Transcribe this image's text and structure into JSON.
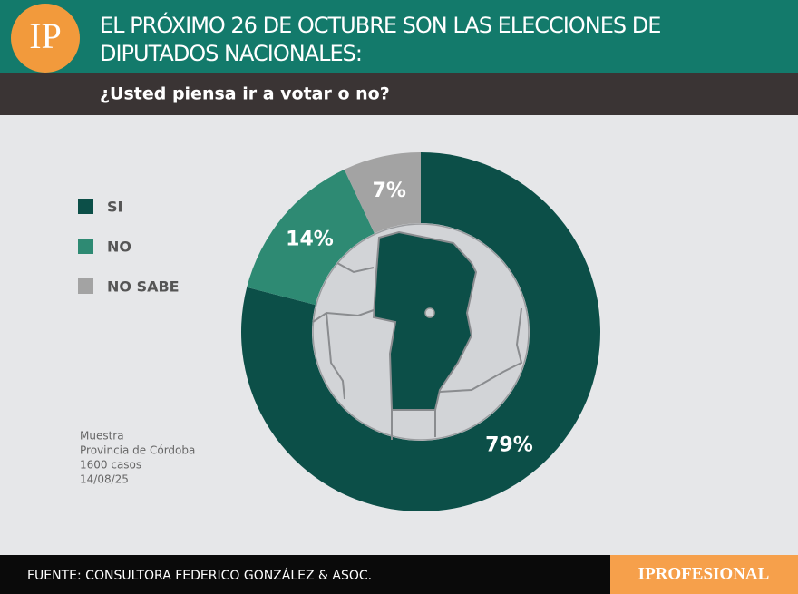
{
  "chart_data": {
    "type": "donut",
    "logo": "IP",
    "title_lines": [
      "EL PRÓXIMO 26 DE OCTUBRE SON LAS ELECCIONES DE",
      "DIPUTADOS NACIONALES:"
    ],
    "subtitle": "¿Usted piensa ir a votar o no?",
    "categories": [
      "SI",
      "NO",
      "NO SABE"
    ],
    "values": [
      79,
      14,
      7
    ],
    "value_labels": [
      "79%",
      "14%",
      "7%"
    ],
    "colors": [
      "#0c4f48",
      "#2e8a73",
      "#a3a3a3"
    ],
    "notes": [
      "Muestra",
      "Provincia de Córdoba",
      "1600 casos",
      "14/08/25"
    ],
    "source": "FUENTE: CONSULTORA FEDERICO GONZÁLEZ & ASOC.",
    "brand": "IPROFESIONAL"
  }
}
